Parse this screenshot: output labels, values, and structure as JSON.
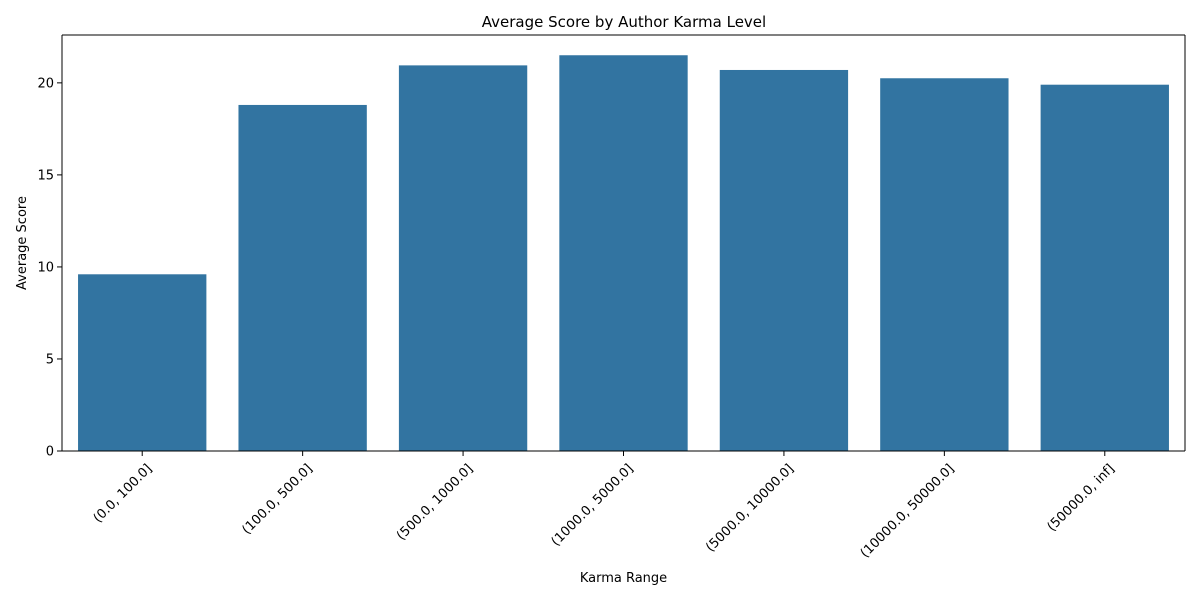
{
  "chart_data": {
    "type": "bar",
    "title": "Average Score by Author Karma Level",
    "xlabel": "Karma Range",
    "ylabel": "Average Score",
    "categories": [
      "(0.0, 100.0]",
      "(100.0, 500.0]",
      "(500.0, 1000.0]",
      "(1000.0, 5000.0]",
      "(5000.0, 10000.0]",
      "(10000.0, 50000.0]",
      "(50000.0, inf]"
    ],
    "values": [
      9.6,
      18.8,
      20.95,
      21.5,
      20.7,
      20.25,
      19.9
    ],
    "ylim": [
      0,
      22.6
    ],
    "yticks": [
      0,
      5,
      10,
      15,
      20
    ],
    "ytick_labels": [
      "0",
      "5",
      "10",
      "15",
      "20"
    ],
    "grid": false,
    "legend": "none",
    "bar_color": "#3274a1",
    "x_tick_rotation_deg": 45
  }
}
